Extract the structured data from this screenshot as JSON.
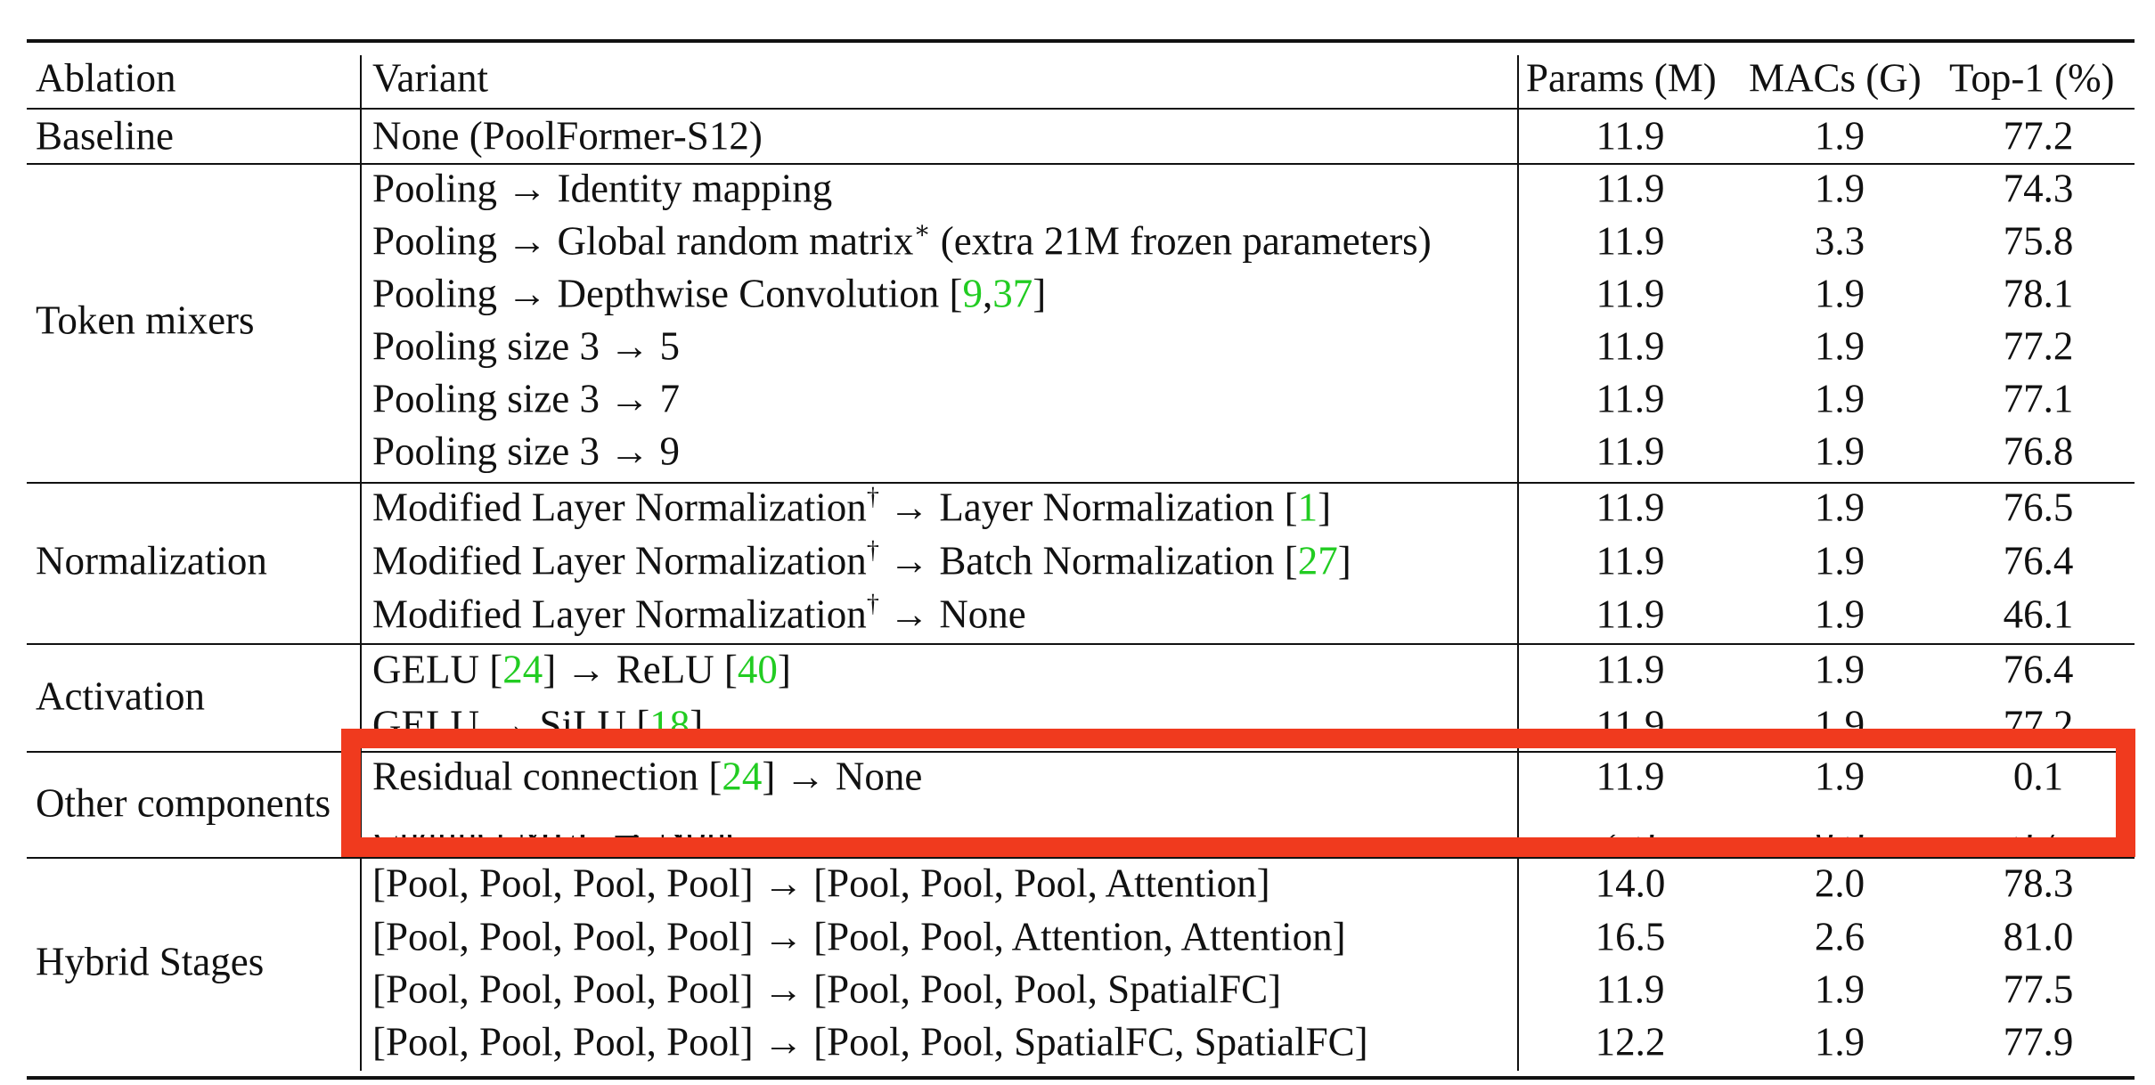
{
  "table": {
    "headers": {
      "ablation": "Ablation",
      "variant": "Variant",
      "params": "Params (M)",
      "macs": "MACs (G)",
      "top1": "Top-1 (%)"
    },
    "groups": {
      "baseline": "Baseline",
      "token_mixers": "Token mixers",
      "normalization": "Normalization",
      "activation": "Activation",
      "other": "Other components",
      "hybrid": "Hybrid Stages"
    },
    "rows": [
      {
        "pre": "None (PoolFormer-S12)",
        "params": "11.9",
        "macs": "1.9",
        "top1": "77.2"
      },
      {
        "pre": "Pooling → Identity mapping",
        "params": "11.9",
        "macs": "1.9",
        "top1": "74.3"
      },
      {
        "pre": "Pooling → Global random matrix",
        "sup": "∗",
        "post": " (extra 21M frozen parameters)",
        "params": "11.9",
        "macs": "3.3",
        "top1": "75.8"
      },
      {
        "pre": "Pooling → Depthwise Convolution [",
        "ref1": "9",
        "mid": ",",
        "ref2": "37",
        "post": "]",
        "params": "11.9",
        "macs": "1.9",
        "top1": "78.1"
      },
      {
        "pre": "Pooling size 3 → 5",
        "params": "11.9",
        "macs": "1.9",
        "top1": "77.2"
      },
      {
        "pre": "Pooling size 3 → 7",
        "params": "11.9",
        "macs": "1.9",
        "top1": "77.1"
      },
      {
        "pre": "Pooling size 3 → 9",
        "params": "11.9",
        "macs": "1.9",
        "top1": "76.8"
      },
      {
        "pre": "Modified Layer Normalization",
        "sup": "†",
        "post": " → Layer Normalization [",
        "ref1": "1",
        "post2": "]",
        "params": "11.9",
        "macs": "1.9",
        "top1": "76.5"
      },
      {
        "pre": "Modified Layer Normalization",
        "sup": "†",
        "post": " → Batch Normalization [",
        "ref1": "27",
        "post2": "]",
        "params": "11.9",
        "macs": "1.9",
        "top1": "76.4"
      },
      {
        "pre": "Modified Layer Normalization",
        "sup": "†",
        "post": " → None",
        "params": "11.9",
        "macs": "1.9",
        "top1": "46.1"
      },
      {
        "pre": "GELU [",
        "ref1": "24",
        "mid": "] → ReLU [",
        "ref2": "40",
        "post": "]",
        "params": "11.9",
        "macs": "1.9",
        "top1": "76.4"
      },
      {
        "pre": "GELU → SiLU [",
        "ref1": "18",
        "post": "]",
        "params": "11.9",
        "macs": "1.9",
        "top1": "77.2"
      },
      {
        "pre": "Residual connection [",
        "ref1": "24",
        "post": "] → None",
        "params": "11.9",
        "macs": "1.9",
        "top1": "0.1"
      },
      {
        "pre": "Channel MLP → None",
        "params": "2.5",
        "macs": "0.5",
        "top1": "5.7"
      },
      {
        "pre": "[Pool, Pool, Pool, Pool] → [Pool, Pool, Pool, Attention]",
        "params": "14.0",
        "macs": "2.0",
        "top1": "78.3"
      },
      {
        "pre": "[Pool, Pool, Pool, Pool] → [Pool, Pool, Attention, Attention]",
        "params": "16.5",
        "macs": "2.6",
        "top1": "81.0"
      },
      {
        "pre": "[Pool, Pool, Pool, Pool] → [Pool, Pool, Pool, SpatialFC]",
        "params": "11.9",
        "macs": "1.9",
        "top1": "77.5"
      },
      {
        "pre": "[Pool, Pool, Pool, Pool] → [Pool, Pool, SpatialFC, SpatialFC]",
        "params": "12.2",
        "macs": "1.9",
        "top1": "77.9"
      }
    ]
  }
}
